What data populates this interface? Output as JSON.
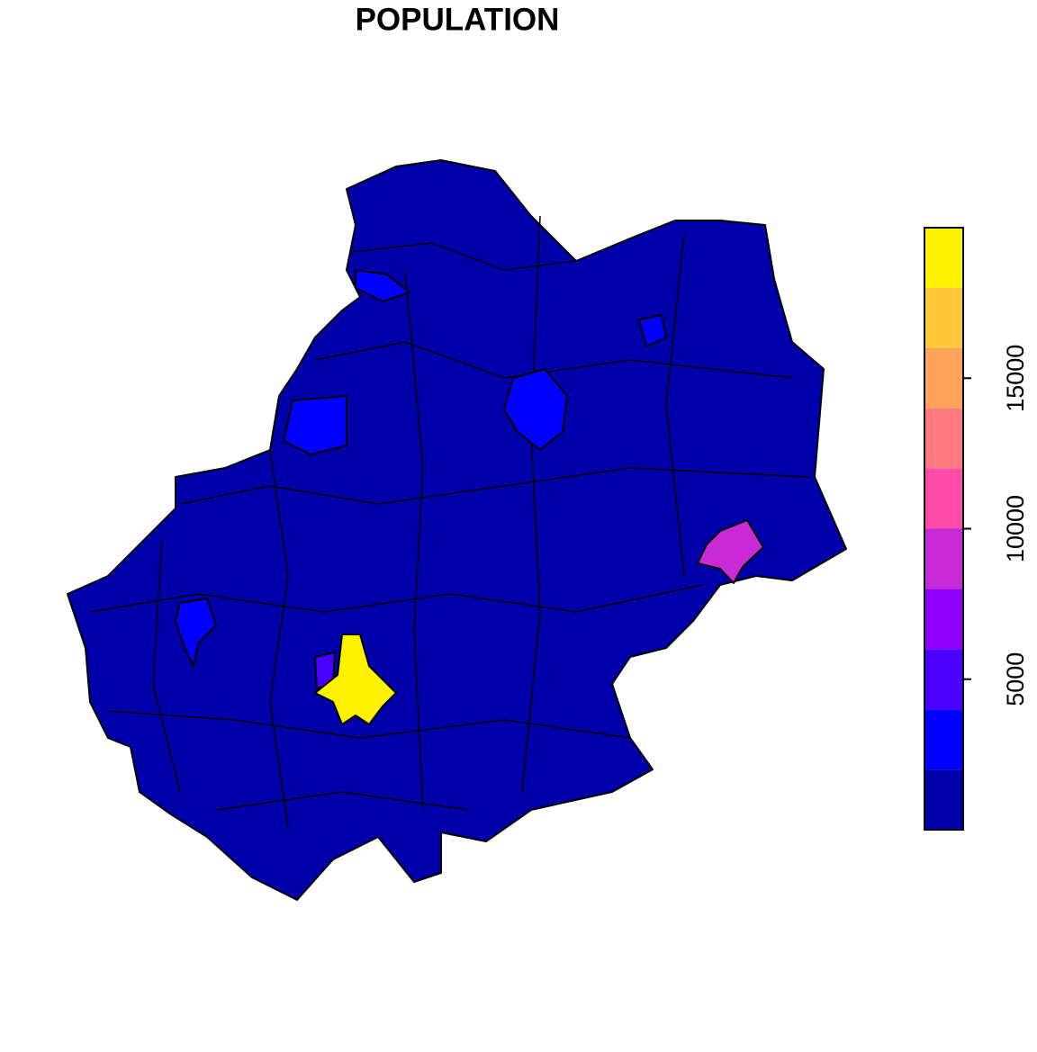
{
  "title": "POPULATION",
  "legend": {
    "lim": [
      0,
      20000
    ],
    "ticks": [
      5000,
      10000,
      15000
    ],
    "breaks": [
      0,
      2000,
      4000,
      6000,
      8000,
      10000,
      12000,
      14000,
      16000,
      18000,
      20000
    ],
    "colors": [
      "#0000AA",
      "#0000FF",
      "#4B00FF",
      "#8F00FF",
      "#C72AD6",
      "#FF4CA8",
      "#FF7A80",
      "#FFA35C",
      "#FFC83C",
      "#FFF200"
    ]
  }
}
